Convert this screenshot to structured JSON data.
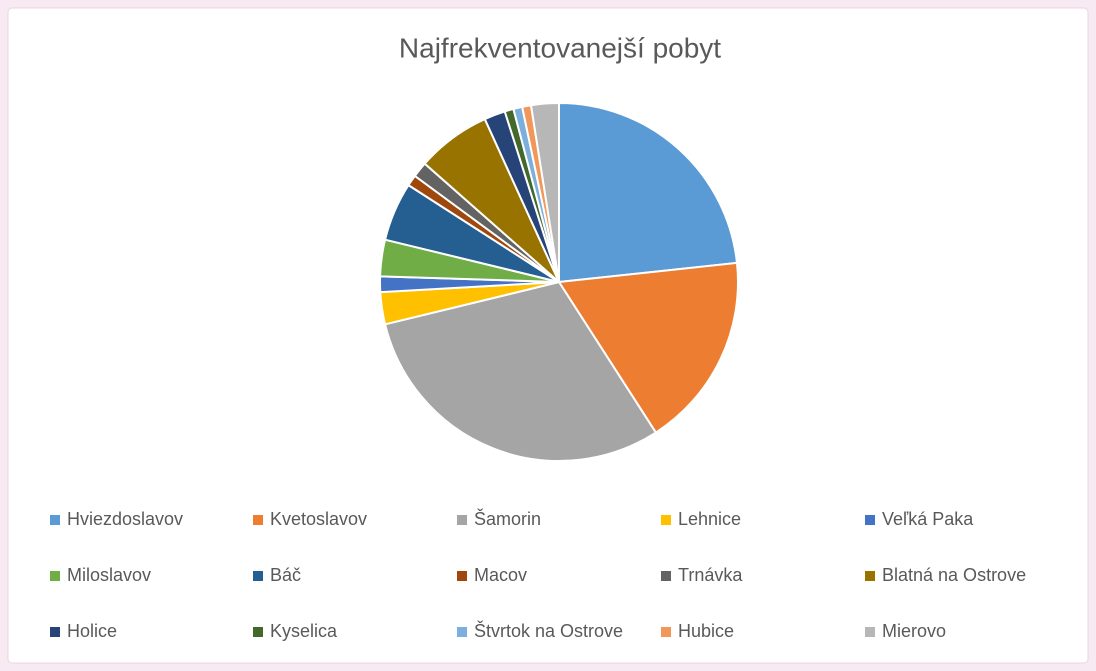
{
  "chart_data": {
    "type": "pie",
    "title": "Najfrekventovanejší pobyt",
    "categories": [
      "Hviezdoslavov",
      "Kvetoslavov",
      "Šamorin",
      "Lehnice",
      "Veľká Paka",
      "Miloslavov",
      "Báč",
      "Macov",
      "Trnávka",
      "Blatná na Ostrove",
      "Holice",
      "Kyselica",
      "Štvrtok na Ostrove",
      "Hubice",
      "Mierovo"
    ],
    "values": [
      23.3,
      17.6,
      30.3,
      2.9,
      1.4,
      3.3,
      5.3,
      1.0,
      1.4,
      6.7,
      1.9,
      0.8,
      0.8,
      0.8,
      2.5
    ],
    "colors": [
      "#5b9bd5",
      "#ed7d31",
      "#a5a5a5",
      "#ffc000",
      "#4472c4",
      "#70ad47",
      "#255e91",
      "#9e480e",
      "#636363",
      "#997300",
      "#264478",
      "#43682b",
      "#7cafdd",
      "#f1975a",
      "#b7b7b7"
    ],
    "legend": "bottom"
  }
}
